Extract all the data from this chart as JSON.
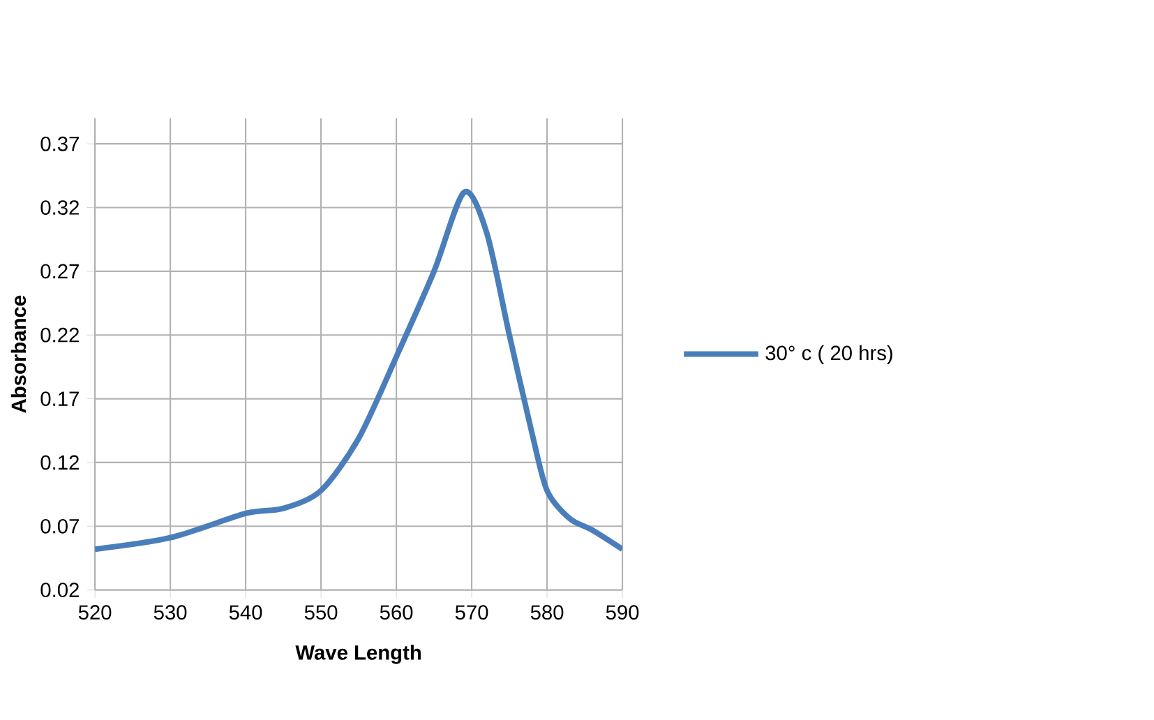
{
  "chart_data": {
    "type": "line",
    "xlabel": "Wave Length",
    "ylabel": "Absorbance",
    "series": [
      {
        "name": "30° c ( 20 hrs)",
        "color": "#4a7ebb",
        "x": [
          520,
          530,
          540,
          545,
          550,
          555,
          560,
          565,
          569,
          572,
          575,
          578,
          580,
          583,
          586,
          590
        ],
        "values": [
          0.052,
          0.061,
          0.08,
          0.084,
          0.098,
          0.139,
          0.203,
          0.27,
          0.332,
          0.3,
          0.22,
          0.143,
          0.098,
          0.076,
          0.067,
          0.052
        ]
      }
    ],
    "xlim": [
      520,
      590
    ],
    "ylim": [
      0.02,
      0.39
    ],
    "xticks": [
      520,
      530,
      540,
      550,
      560,
      570,
      580,
      590
    ],
    "yticks": [
      0.02,
      0.07,
      0.12,
      0.17,
      0.22,
      0.27,
      0.32,
      0.37
    ],
    "grid": true,
    "legend": "right",
    "marker": "none",
    "line_style": "solid"
  }
}
